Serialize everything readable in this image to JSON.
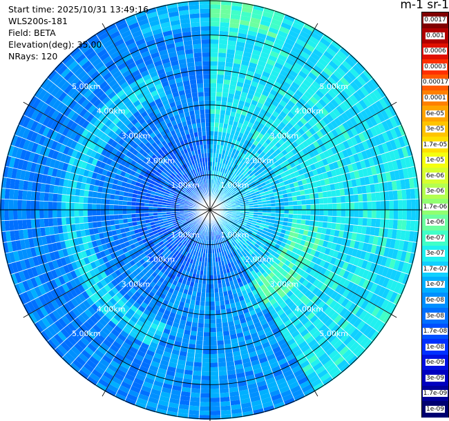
{
  "header": {
    "start_time": "Start time: 2025/10/31 13:49:16",
    "instrument": "WLS200s-181",
    "field": "Field: BETA",
    "elevation": "Elevation(deg): 35.00",
    "nrays": "NRays: 120"
  },
  "colorbar": {
    "title": "m-1 sr-1",
    "ticks": [
      "0.0017",
      "0.001",
      "0.0006",
      "0.0003",
      "0.00017",
      "0.0001",
      "6e-05",
      "3e-05",
      "1.7e-05",
      "1e-05",
      "6e-06",
      "3e-06",
      "1.7e-06",
      "1e-06",
      "6e-07",
      "3e-07",
      "1.7e-07",
      "1e-07",
      "6e-08",
      "3e-08",
      "1.7e-08",
      "1e-08",
      "6e-09",
      "3e-09",
      "1.7e-09",
      "1e-09"
    ],
    "colors": [
      "#800000",
      "#b00000",
      "#e01000",
      "#ff3000",
      "#ff5a00",
      "#ff8000",
      "#ffa500",
      "#ffc400",
      "#ffe000",
      "#f5ff10",
      "#d6ff30",
      "#b4ff50",
      "#90ff70",
      "#6cffa0",
      "#40ffc8",
      "#20f0f0",
      "#10d0ff",
      "#00b0ff",
      "#0090ff",
      "#0070ff",
      "#0050ff",
      "#0030ff",
      "#0010e0",
      "#0000c0",
      "#00009a",
      "#000070"
    ]
  },
  "chart_data": {
    "type": "heatmap",
    "projection": "polar (PPI scan)",
    "field": "BETA",
    "units": "m-1 sr-1",
    "scale": "log",
    "color_range": [
      1e-09,
      0.0017
    ],
    "n_rays": 120,
    "elevation_deg": 35.0,
    "max_range_km": 6.0,
    "range_rings_km": [
      1,
      2,
      3,
      4,
      5
    ],
    "range_ring_labels": [
      "1.00km",
      "2.00km",
      "3.00km",
      "4.00km",
      "5.00km"
    ],
    "dominant_values_by_sector": [
      {
        "sector": "north-east",
        "approx_value": "1e-07 to 3e-07"
      },
      {
        "sector": "east",
        "approx_value": "1e-07 to 3e-07"
      },
      {
        "sector": "south-east",
        "approx_value": "6e-08 to 3e-07"
      },
      {
        "sector": "south",
        "approx_value": "1.7e-08 to 6e-08"
      },
      {
        "sector": "west",
        "approx_value": "1.7e-08 to 6e-08"
      },
      {
        "sector": "north-west",
        "approx_value": "1.7e-08 to 1e-07"
      }
    ]
  }
}
